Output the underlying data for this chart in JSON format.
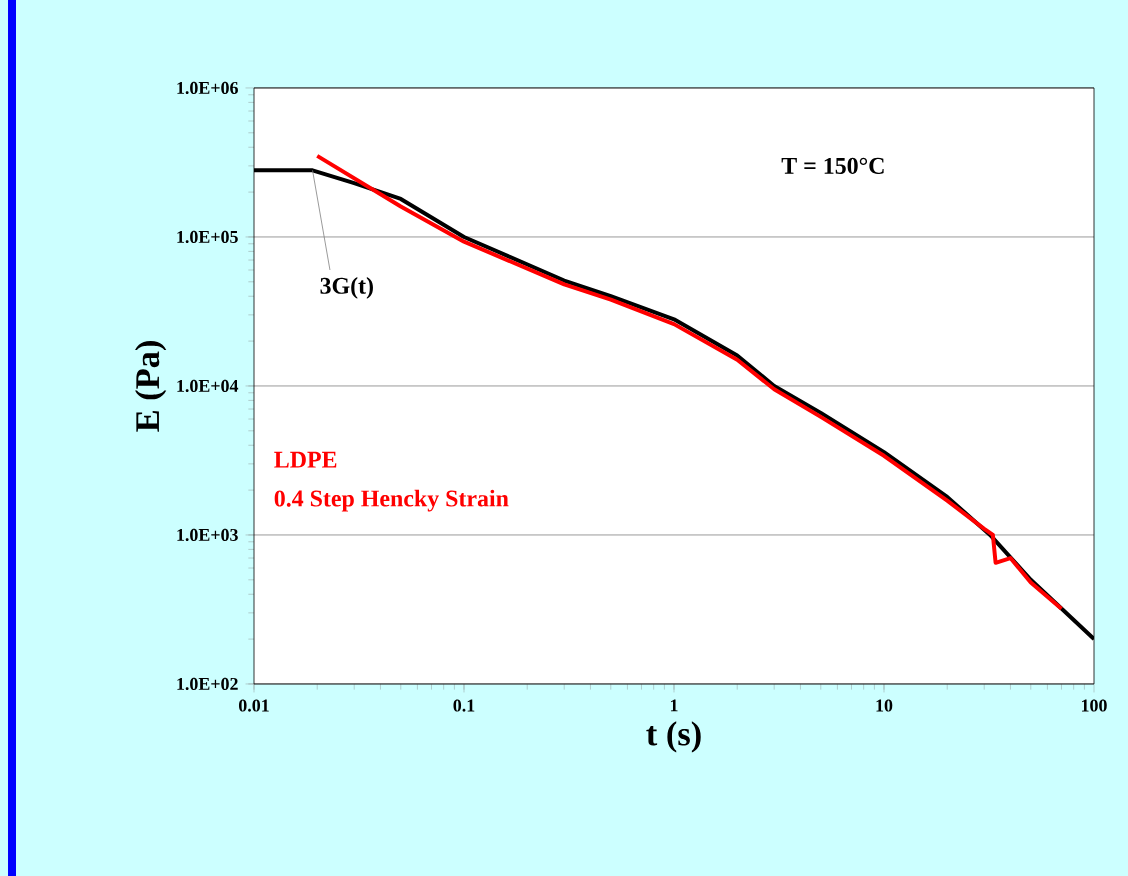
{
  "chart_data": {
    "type": "line",
    "xlabel": "t (s)",
    "ylabel": "E (Pa)",
    "log": "xy",
    "grid": "y",
    "legend": false,
    "marker": "none",
    "line_style": "solid",
    "xlim": [
      0.01,
      100
    ],
    "ylim": [
      100,
      1000000
    ],
    "xticks": [
      0.01,
      0.1,
      1,
      10,
      100
    ],
    "yticks": [
      {
        "value": 100,
        "label": "1.0E+02"
      },
      {
        "value": 1000,
        "label": "1.0E+03"
      },
      {
        "value": 10000,
        "label": "1.0E+04"
      },
      {
        "value": 100000,
        "label": "1.0E+05"
      },
      {
        "value": 1000000,
        "label": "1.0E+06"
      }
    ],
    "annotations": [
      "T = 150°C",
      "0.4 Step Hencky Strain"
    ],
    "series": [
      {
        "name": "3G(t)",
        "color": "#000000",
        "x": [
          0.01,
          0.019,
          0.03,
          0.05,
          0.1,
          0.3,
          0.5,
          1,
          2,
          3,
          5,
          10,
          20,
          32,
          50,
          100
        ],
        "values": [
          280000,
          280000,
          230000,
          180000,
          100000,
          51000,
          40000,
          28000,
          16000,
          10000,
          6600,
          3600,
          1800,
          1000,
          500,
          200
        ]
      },
      {
        "name": "LDPE",
        "color": "#ff0000",
        "x": [
          0.02,
          0.05,
          0.1,
          0.3,
          0.5,
          1,
          2,
          3,
          5,
          10,
          20,
          30,
          33,
          34,
          40,
          50,
          70
        ],
        "values": [
          350000,
          160000,
          93000,
          48000,
          38000,
          26000,
          15000,
          9500,
          6200,
          3400,
          1700,
          1100,
          1000,
          650,
          700,
          480,
          320
        ]
      }
    ]
  }
}
